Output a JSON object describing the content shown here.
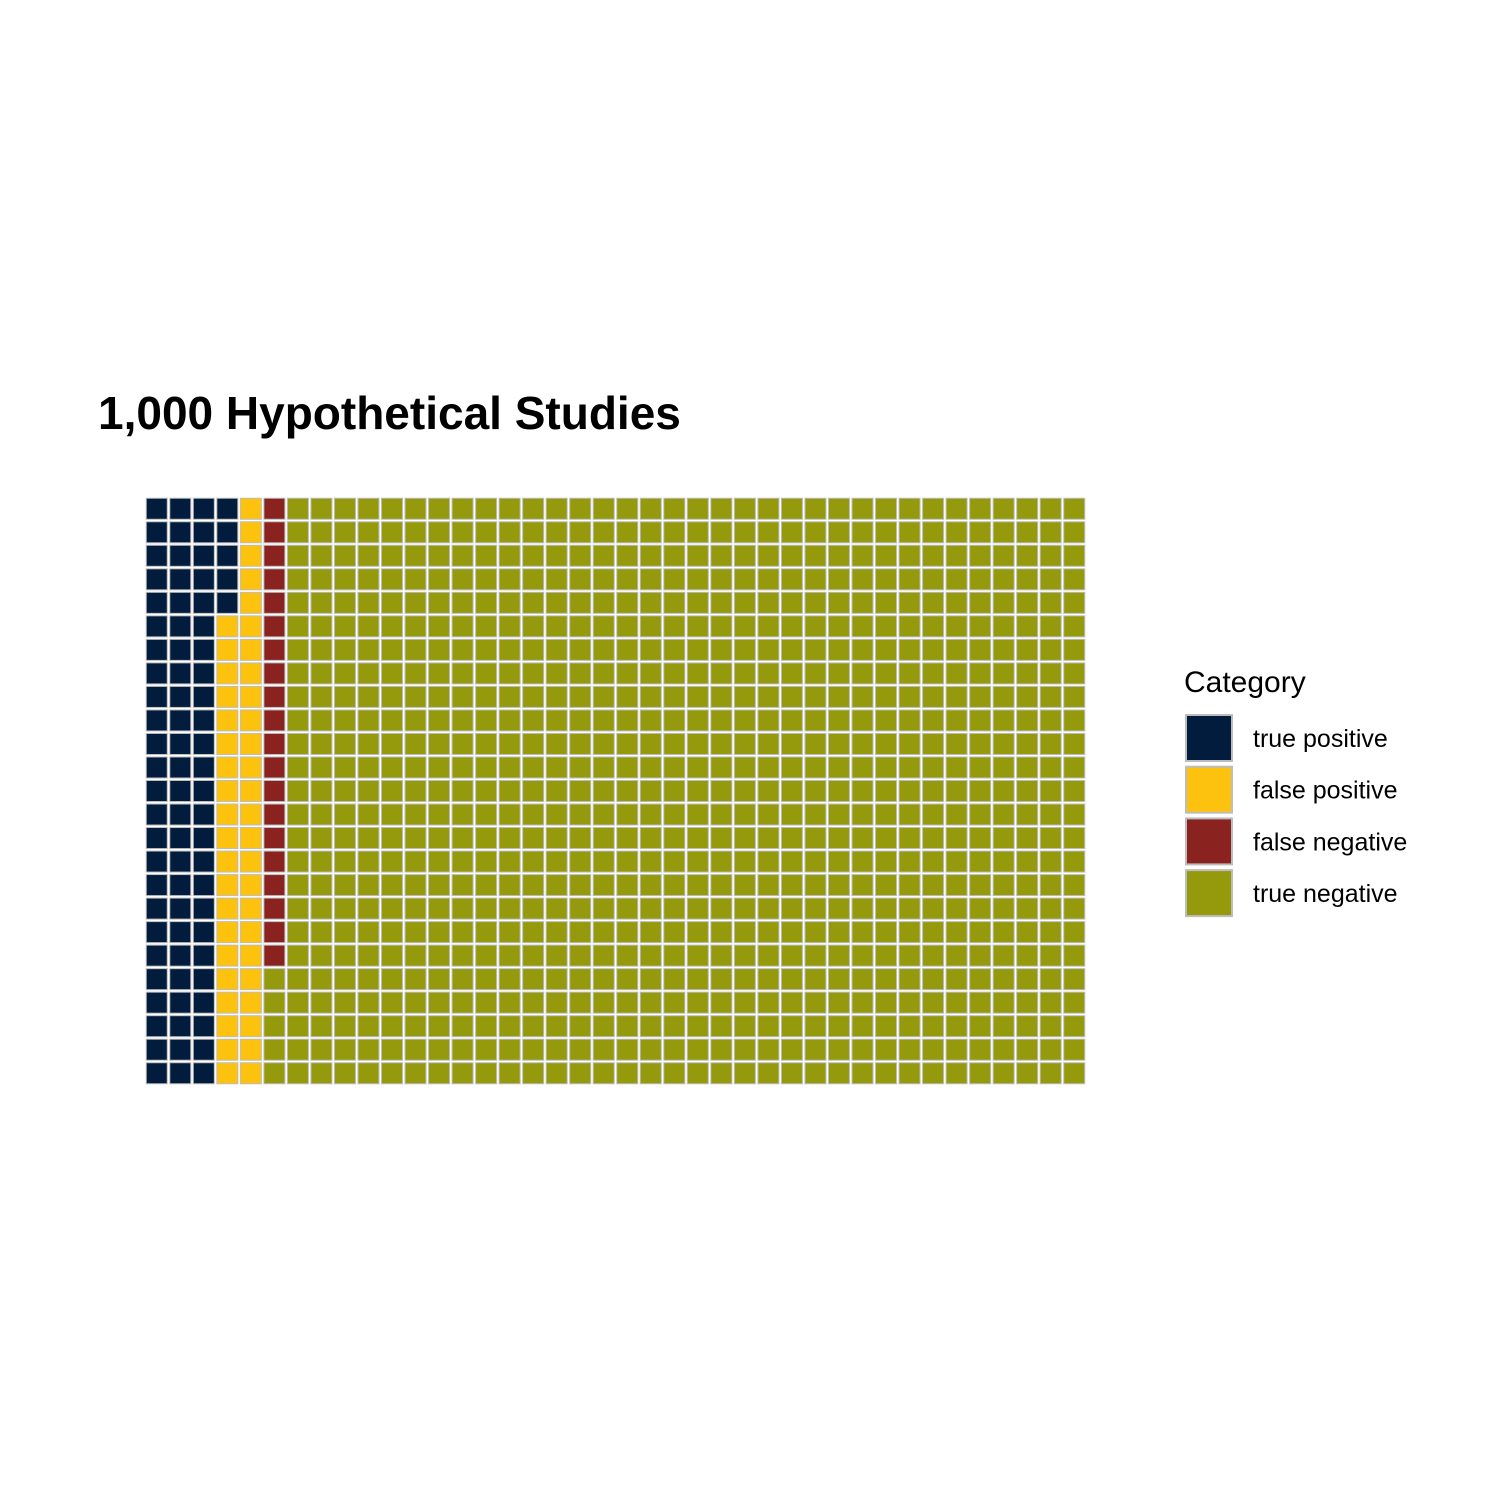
{
  "chart_data": {
    "type": "waffle",
    "title": "1,000 Hypothetical Studies",
    "rows": 25,
    "columns": 40,
    "fill_order": "column-major, top-to-bottom",
    "legend": {
      "title": "Category",
      "placement": "right"
    },
    "categories": [
      {
        "name": "true positive",
        "value": 80,
        "color": "#011C3D"
      },
      {
        "name": "false positive",
        "value": 45,
        "color": "#FDC20E"
      },
      {
        "name": "false negative",
        "value": 20,
        "color": "#8A231F"
      },
      {
        "name": "true negative",
        "value": 855,
        "color": "#959A0C"
      }
    ],
    "tile_border_color": "#BDBDBD"
  }
}
